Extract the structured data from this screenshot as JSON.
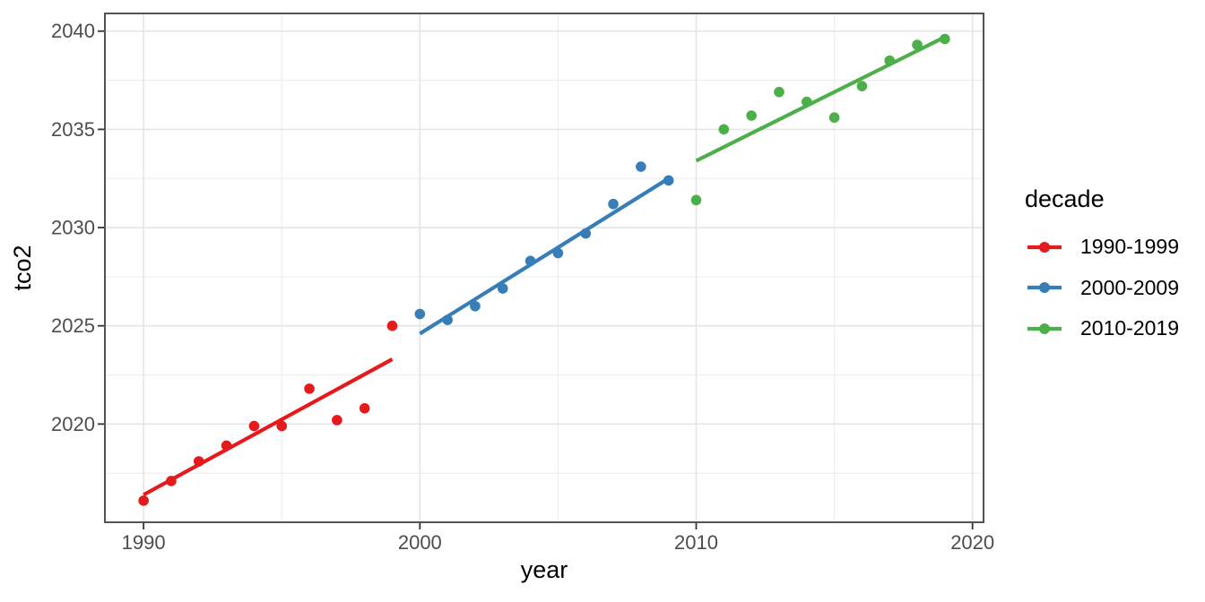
{
  "legend": {
    "title": "decade"
  },
  "chart_data": {
    "type": "scatter",
    "title": "",
    "xlabel": "year",
    "ylabel": "tco2",
    "xlim": [
      1988.6,
      2020.4
    ],
    "ylim": [
      2015.0,
      2040.9
    ],
    "grid": true,
    "legend_position": "right",
    "x_major_ticks": [
      1990,
      2000,
      2010,
      2020
    ],
    "x_minor_ticks": [
      1995,
      2005,
      2015
    ],
    "x_tick_labels": [
      "1990",
      "2000",
      "2010",
      "2020"
    ],
    "y_major_ticks": [
      2020,
      2025,
      2030,
      2035,
      2040
    ],
    "y_minor_ticks": [
      2017.5,
      2022.5,
      2027.5,
      2032.5,
      2037.5
    ],
    "y_tick_labels": [
      "2020",
      "2025",
      "2030",
      "2035",
      "2040"
    ],
    "series": [
      {
        "name": "1990-1999",
        "color": "#E41A1C",
        "x": [
          1990,
          1991,
          1992,
          1993,
          1994,
          1995,
          1996,
          1997,
          1998,
          1999
        ],
        "y": [
          2016.1,
          2017.1,
          2018.1,
          2018.9,
          2019.9,
          2019.9,
          2021.8,
          2020.2,
          2020.8,
          2025.0
        ],
        "trend_line": {
          "x1": 1990,
          "y1": 2016.4,
          "x2": 1999,
          "y2": 2023.3
        }
      },
      {
        "name": "2000-2009",
        "color": "#377EB8",
        "x": [
          2000,
          2001,
          2002,
          2003,
          2004,
          2005,
          2006,
          2007,
          2008,
          2009
        ],
        "y": [
          2025.6,
          2025.3,
          2026.0,
          2026.9,
          2028.3,
          2028.7,
          2029.7,
          2031.2,
          2033.1,
          2032.4
        ],
        "trend_line": {
          "x1": 2000,
          "y1": 2024.6,
          "x2": 2009,
          "y2": 2032.5
        }
      },
      {
        "name": "2010-2019",
        "color": "#4DAF4A",
        "x": [
          2010,
          2011,
          2012,
          2013,
          2014,
          2015,
          2016,
          2017,
          2018,
          2019
        ],
        "y": [
          2031.4,
          2035.0,
          2035.7,
          2036.9,
          2036.4,
          2035.6,
          2037.2,
          2038.5,
          2039.3,
          2039.6
        ],
        "trend_line": {
          "x1": 2010,
          "y1": 2033.4,
          "x2": 2019,
          "y2": 2039.7
        }
      }
    ]
  },
  "style": {
    "background": "#FFFFFF",
    "panel_border": "#424242",
    "grid_major": "#E5E5E5",
    "grid_minor": "#EDEDED",
    "tick_mark_color": "#333333",
    "tick_label_color": "#4D4D4D",
    "text_color": "#000000"
  }
}
